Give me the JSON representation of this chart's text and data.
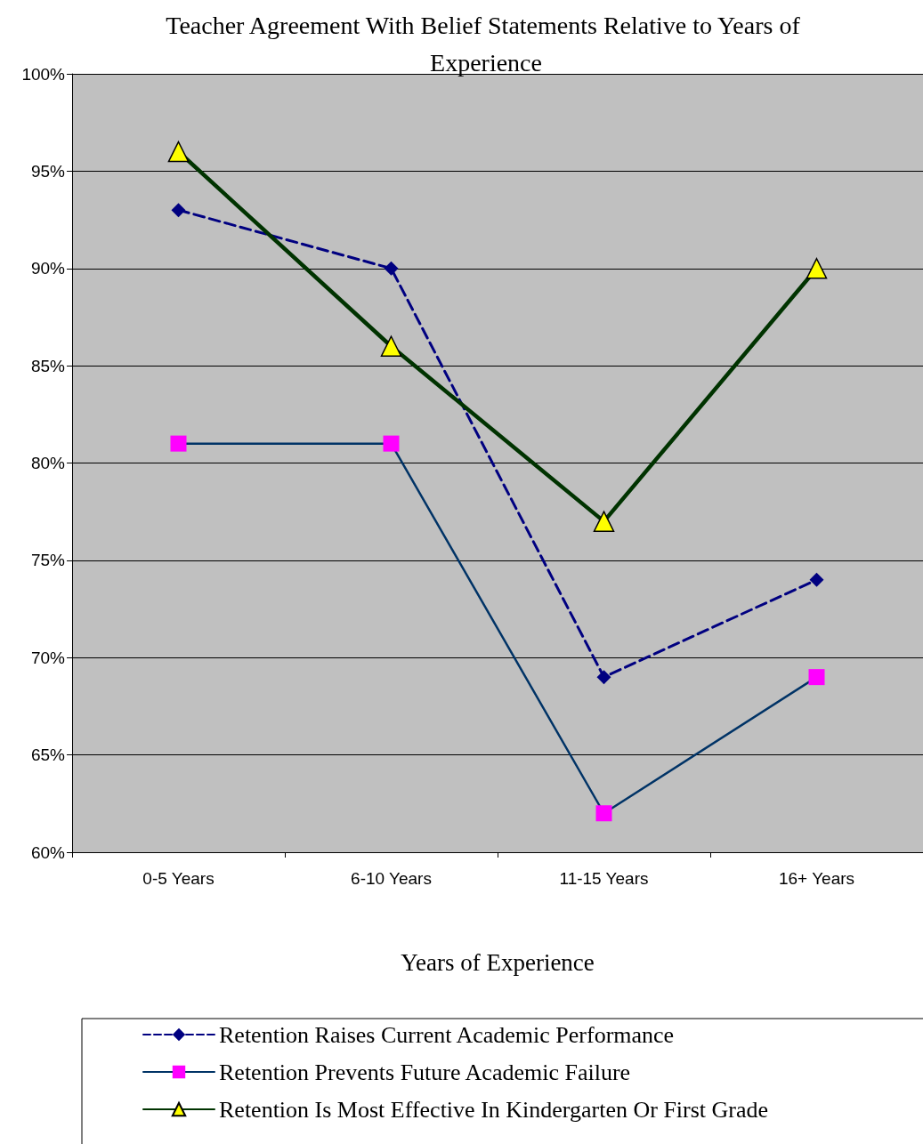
{
  "chart_data": {
    "type": "line",
    "title": "Teacher Agreement With Belief Statements Relative to Years of Experience",
    "xlabel": "Years of Experience",
    "categories": [
      "0-5 Years",
      "6-10 Years",
      "11-15 Years",
      "16+ Years"
    ],
    "series": [
      {
        "name": "Retention Raises Current Academic Performance",
        "color": "#000080",
        "values": [
          93,
          90,
          69,
          74
        ],
        "marker": "diamond",
        "line_style": "dashed"
      },
      {
        "name": "Retention Prevents Future Academic Failure",
        "color": "#003366",
        "colors": [
          "#ff00ff",
          "#ff00ff",
          "#ff00ff",
          "#ff00ff"
        ],
        "values": [
          81,
          81,
          62,
          69
        ],
        "marker": "square",
        "line_style": "solid"
      },
      {
        "name": "Retention Is Most Effective In Kindergarten Or First Grade",
        "color": "#003300",
        "colors": [
          "#ffff00",
          "#ffff00",
          "#ffff00",
          "#ffff00"
        ],
        "values": [
          96,
          86,
          77,
          90
        ],
        "marker": "triangle",
        "line_style": "solid"
      }
    ],
    "ylim": [
      60,
      100
    ],
    "yticks": [
      {
        "value": 60,
        "label": "60%"
      },
      {
        "value": 65,
        "label": "65%"
      },
      {
        "value": 70,
        "label": "70%"
      },
      {
        "value": 75,
        "label": "75%"
      },
      {
        "value": 80,
        "label": "80%"
      },
      {
        "value": 85,
        "label": "85%"
      },
      {
        "value": 90,
        "label": "90%"
      },
      {
        "value": 95,
        "label": "95%"
      },
      {
        "value": 100,
        "label": "100%"
      }
    ],
    "grid": "y",
    "legend": "bottom"
  }
}
